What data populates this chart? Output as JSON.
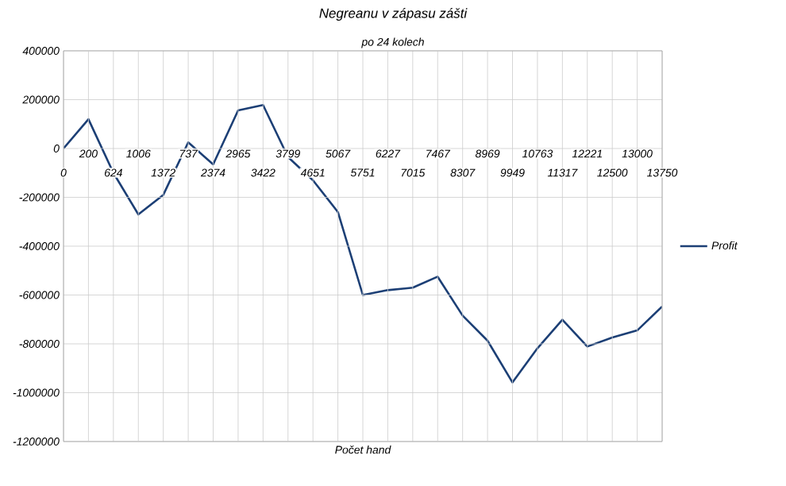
{
  "chart_data": {
    "type": "line",
    "title": "Negreanu v zápasu zášti",
    "subtitle": "po 24 kolech",
    "xlabel": "Počet hand",
    "categories": [
      "0",
      "200",
      "624",
      "1006",
      "1372",
      "737",
      "2374",
      "2965",
      "3422",
      "3799",
      "4651",
      "5067",
      "5751",
      "6227",
      "7015",
      "7467",
      "8307",
      "8969",
      "9949",
      "10763",
      "11317",
      "12221",
      "12500",
      "13000",
      "13750"
    ],
    "series": [
      {
        "name": "Profit",
        "color": "#1c3f75",
        "values": [
          0,
          120000,
          -100000,
          -270000,
          -190000,
          25000,
          -65000,
          156000,
          178000,
          -35000,
          -130000,
          -260000,
          -600000,
          -580000,
          -570000,
          -525000,
          -684000,
          -787000,
          -958000,
          -818000,
          -701000,
          -811000,
          -774000,
          -745000,
          -647000
        ]
      }
    ],
    "ylim": [
      -1200000,
      400000
    ],
    "yticks": [
      -1200000,
      -1000000,
      -800000,
      -600000,
      -400000,
      -200000,
      0,
      200000,
      400000
    ],
    "grid": true,
    "legend": "right",
    "marker": "none",
    "line_style": "solid"
  }
}
